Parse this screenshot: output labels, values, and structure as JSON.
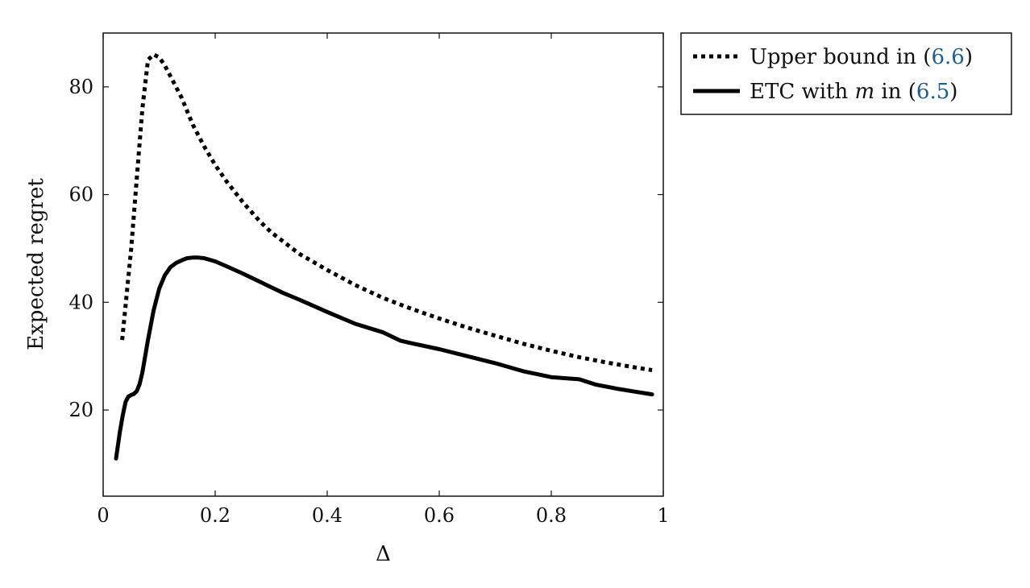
{
  "chart_data": {
    "type": "line",
    "title": "",
    "xlabel": "Δ",
    "ylabel": "Expected regret",
    "xlim": [
      0,
      1
    ],
    "ylim": [
      4,
      90
    ],
    "xticks": [
      0,
      0.2,
      0.4,
      0.6,
      0.8,
      1
    ],
    "xtick_labels": [
      "0",
      "0.2",
      "0.4",
      "0.6",
      "0.8",
      "1"
    ],
    "yticks": [
      20,
      40,
      60,
      80
    ],
    "ytick_labels": [
      "20",
      "40",
      "60",
      "80"
    ],
    "grid": false,
    "legend_position": "outside-right-top",
    "series": [
      {
        "id": "upper_bound",
        "name": "Upper bound in (6.6)",
        "legend_text": "Upper bound in (",
        "legend_ref": "6.6",
        "legend_close": ")",
        "style": "dotted",
        "color": "#000000",
        "x": [
          0.034,
          0.05,
          0.06,
          0.07,
          0.08,
          0.09,
          0.1,
          0.11,
          0.12,
          0.14,
          0.16,
          0.18,
          0.2,
          0.22,
          0.25,
          0.28,
          0.3,
          0.35,
          0.4,
          0.45,
          0.5,
          0.55,
          0.6,
          0.65,
          0.7,
          0.75,
          0.8,
          0.85,
          0.9,
          0.95,
          0.98
        ],
        "y": [
          33,
          50,
          63,
          76,
          85,
          86,
          85.5,
          84,
          82,
          78,
          73,
          69,
          65.5,
          62.5,
          58.5,
          55,
          53,
          49,
          46,
          43.2,
          40.8,
          38.8,
          37,
          35.3,
          33.8,
          32.3,
          31,
          29.8,
          28.8,
          27.9,
          27.4
        ]
      },
      {
        "id": "etc",
        "name": "ETC with m in (6.5)",
        "legend_text_pre": "ETC with ",
        "legend_italic": "m",
        "legend_text_post": " in (",
        "legend_ref": "6.5",
        "legend_close": ")",
        "style": "solid",
        "color": "#000000",
        "x": [
          0.023,
          0.03,
          0.035,
          0.04,
          0.045,
          0.05,
          0.055,
          0.06,
          0.065,
          0.07,
          0.08,
          0.09,
          0.1,
          0.11,
          0.12,
          0.13,
          0.14,
          0.15,
          0.16,
          0.17,
          0.18,
          0.2,
          0.22,
          0.25,
          0.28,
          0.3,
          0.32,
          0.35,
          0.4,
          0.45,
          0.5,
          0.53,
          0.55,
          0.6,
          0.65,
          0.7,
          0.75,
          0.8,
          0.85,
          0.88,
          0.92,
          0.95,
          0.98
        ],
        "y": [
          11,
          16,
          19,
          21.5,
          22.5,
          22.8,
          23,
          23.5,
          24.8,
          27,
          33,
          38.5,
          42.5,
          45,
          46.5,
          47.3,
          47.8,
          48.2,
          48.3,
          48.3,
          48.2,
          47.6,
          46.7,
          45.3,
          43.8,
          42.8,
          41.8,
          40.5,
          38.2,
          36,
          34.4,
          32.9,
          32.4,
          31.3,
          30,
          28.7,
          27.2,
          26.1,
          25.7,
          24.7,
          23.9,
          23.4,
          22.9
        ]
      }
    ]
  }
}
